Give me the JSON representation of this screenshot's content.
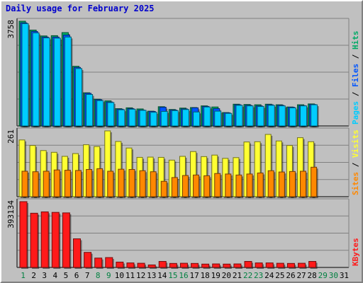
{
  "title": "Daily usage for February 2025",
  "colors": {
    "background": "#c0c0c0",
    "pages": "#00ccff",
    "files": "#0055ff",
    "hits": "#00aa66",
    "visits": "#ffff33",
    "sites": "#ff8800",
    "kbytes": "#ff1a1a",
    "title": "#0000cc",
    "weekday_label": "#000000",
    "weekend_label": "#008040"
  },
  "chart_data": [
    {
      "type": "bar",
      "panel": "top",
      "ymax_label": "3758",
      "ylim": [
        0,
        3758
      ],
      "right_legend": [
        "Pages",
        "Files",
        "Hits"
      ],
      "categories": [
        "1",
        "2",
        "3",
        "4",
        "5",
        "6",
        "7",
        "8",
        "9",
        "10",
        "11",
        "12",
        "13",
        "14",
        "15",
        "16",
        "17",
        "18",
        "19",
        "20",
        "21",
        "22",
        "23",
        "24",
        "25",
        "26",
        "27",
        "28",
        "29",
        "30",
        "31"
      ],
      "series": [
        {
          "name": "Hits",
          "values": [
            3758,
            3440,
            3230,
            3240,
            3350,
            2140,
            1190,
            960,
            900,
            620,
            650,
            610,
            530,
            690,
            590,
            640,
            660,
            720,
            680,
            480,
            780,
            770,
            760,
            780,
            760,
            680,
            760,
            790,
            0,
            0,
            0
          ]
        },
        {
          "name": "Files",
          "values": [
            3700,
            3390,
            3190,
            3190,
            3260,
            2100,
            1170,
            940,
            860,
            600,
            620,
            570,
            520,
            670,
            570,
            610,
            650,
            700,
            620,
            470,
            760,
            740,
            720,
            760,
            740,
            670,
            730,
            770,
            0,
            0,
            0
          ]
        },
        {
          "name": "Pages",
          "values": [
            3670,
            3340,
            3160,
            3150,
            3190,
            2060,
            1130,
            910,
            840,
            580,
            600,
            560,
            490,
            520,
            550,
            590,
            500,
            680,
            530,
            450,
            740,
            720,
            700,
            740,
            720,
            650,
            720,
            760,
            0,
            0,
            0
          ]
        }
      ]
    },
    {
      "type": "bar",
      "panel": "middle",
      "ymax_label": "261",
      "ylim": [
        0,
        261
      ],
      "right_legend": [
        "Sites",
        "Visits"
      ],
      "categories": [
        "1",
        "2",
        "3",
        "4",
        "5",
        "6",
        "7",
        "8",
        "9",
        "10",
        "11",
        "12",
        "13",
        "14",
        "15",
        "16",
        "17",
        "18",
        "19",
        "20",
        "21",
        "22",
        "23",
        "24",
        "25",
        "26",
        "27",
        "28",
        "29",
        "30",
        "31"
      ],
      "series": [
        {
          "name": "Visits",
          "values": [
            225,
            203,
            183,
            176,
            160,
            171,
            206,
            199,
            261,
            219,
            193,
            156,
            157,
            156,
            145,
            160,
            179,
            159,
            165,
            152,
            155,
            217,
            218,
            247,
            221,
            203,
            234,
            218,
            0,
            0,
            0
          ]
        },
        {
          "name": "Sites",
          "values": [
            101,
            99,
            101,
            106,
            105,
            104,
            108,
            111,
            101,
            109,
            108,
            103,
            99,
            61,
            76,
            84,
            86,
            83,
            92,
            90,
            86,
            90,
            94,
            103,
            98,
            100,
            101,
            117,
            0,
            0,
            0
          ]
        }
      ]
    },
    {
      "type": "bar",
      "panel": "bottom",
      "ymax_label": "393134",
      "ylim": [
        0,
        393134
      ],
      "right_legend": [
        "KBytes"
      ],
      "categories": [
        "1",
        "2",
        "3",
        "4",
        "5",
        "6",
        "7",
        "8",
        "9",
        "10",
        "11",
        "12",
        "13",
        "14",
        "15",
        "16",
        "17",
        "18",
        "19",
        "20",
        "21",
        "22",
        "23",
        "24",
        "25",
        "26",
        "27",
        "28",
        "29",
        "30",
        "31"
      ],
      "series": [
        {
          "name": "KBytes",
          "values": [
            393134,
            324000,
            332000,
            329000,
            326000,
            171000,
            90000,
            56000,
            59000,
            32000,
            27000,
            25000,
            15000,
            36000,
            24000,
            25000,
            24000,
            20000,
            21000,
            20000,
            21000,
            36000,
            27000,
            27000,
            25000,
            24000,
            25000,
            36000,
            0,
            0,
            0
          ]
        }
      ]
    }
  ],
  "x_labels": [
    "1",
    "2",
    "3",
    "4",
    "5",
    "6",
    "7",
    "8",
    "9",
    "10",
    "11",
    "12",
    "13",
    "14",
    "15",
    "16",
    "17",
    "18",
    "19",
    "20",
    "21",
    "22",
    "23",
    "24",
    "25",
    "26",
    "27",
    "28",
    "29",
    "30",
    "31"
  ],
  "weekend_days": [
    "1",
    "8",
    "9",
    "15",
    "16",
    "22",
    "23",
    "29",
    "30"
  ]
}
